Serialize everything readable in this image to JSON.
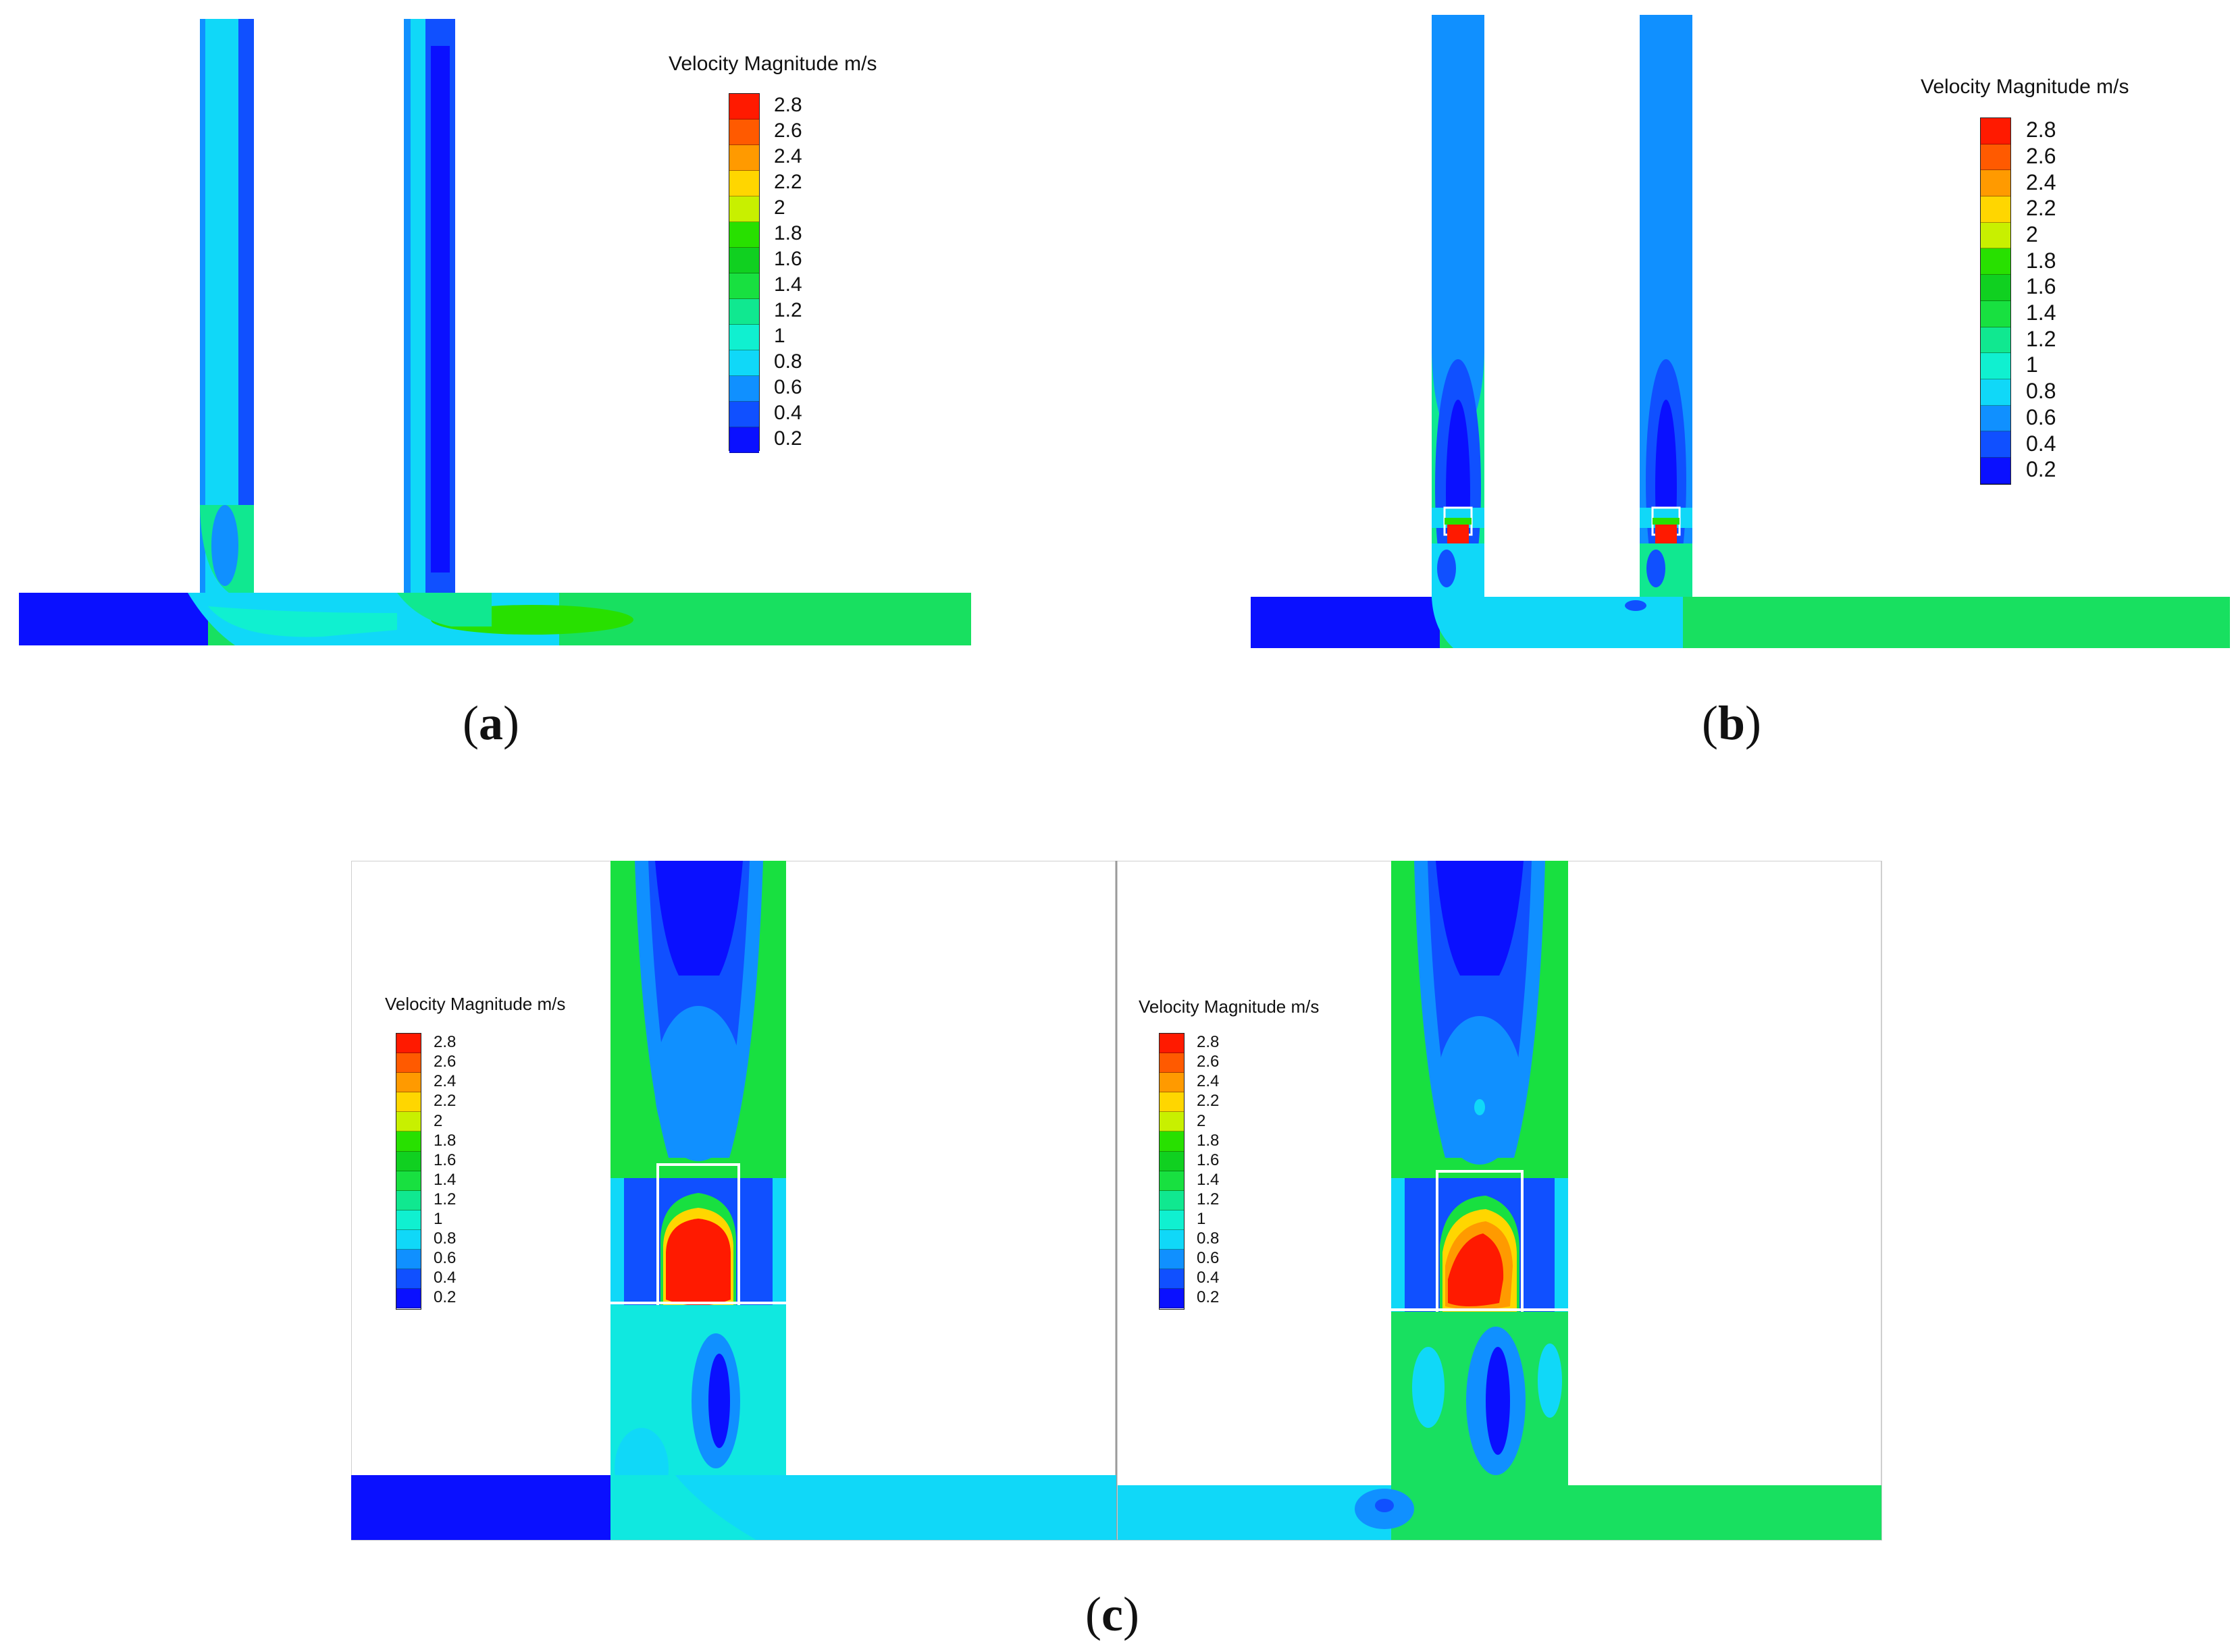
{
  "legend": {
    "title": "Velocity Magnitude  m/s",
    "levels": [
      "2.8",
      "2.6",
      "2.4",
      "2.2",
      "2",
      "1.8",
      "1.6",
      "1.4",
      "1.2",
      "1",
      "0.8",
      "0.6",
      "0.4",
      "0.2"
    ],
    "colors": [
      "#ff1a00",
      "#ff5a00",
      "#ff9a00",
      "#ffd600",
      "#c8f000",
      "#28e000",
      "#10d020",
      "#18e040",
      "#10e890",
      "#10f0d0",
      "#10d8f8",
      "#1090ff",
      "#1050ff",
      "#0a10ff"
    ]
  },
  "captions": {
    "a": "a",
    "b": "b",
    "c": "c"
  },
  "field_colors": {
    "very_low": "#0a10ff",
    "low": "#1050ff",
    "low_mid": "#1090ff",
    "mid": "#10d8f8",
    "cyan": "#10f0d0",
    "green_light": "#10e890",
    "green": "#18e040",
    "high": "#ff9a00",
    "peak": "#ff1a00"
  }
}
